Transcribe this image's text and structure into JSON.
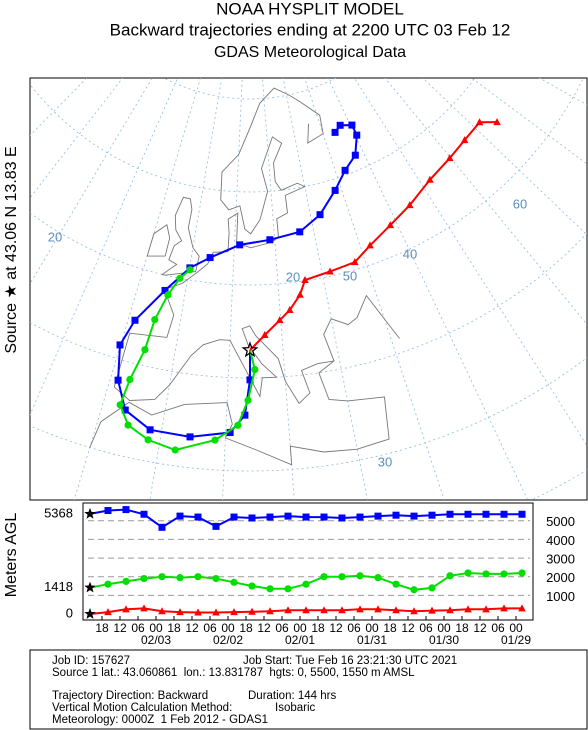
{
  "header": {
    "title": "NOAA HYSPLIT MODEL",
    "subtitle": "Backward trajectories ending at 2200 UTC 03 Feb 12",
    "source_data": "GDAS Meteorological Data"
  },
  "map": {
    "side_label": "Source ★ at 43.06 N 13.83 E",
    "grid_labels": [
      20,
      20,
      30,
      40,
      50,
      60
    ],
    "trajectories": [
      {
        "lat": [
          43.0,
          39.8,
          36.0,
          34.1,
          33.3,
          33.4,
          34.9,
          37.8,
          41.5,
          44.5,
          48.4,
          51.3,
          52.7,
          54.3,
          54.8,
          55.3,
          56.7,
          58.8,
          60.5,
          61.6,
          63.5,
          64.7,
          65.2,
          64.7
        ],
        "lon": [
          13.83,
          13.83,
          13.0,
          10.7,
          4.5,
          -1.8,
          -6.3,
          -8.7,
          -10.1,
          -8.7,
          -4.3,
          0.1,
          4.4,
          11.3,
          18.8,
          26.5,
          32.5,
          38.2,
          42.8,
          47.4,
          50.5,
          50.5,
          46.7,
          44.1
        ]
      },
      {
        "lat": [
          43.0,
          40.9,
          37.6,
          34.9,
          33.2,
          31.7,
          32.3,
          33.4,
          35.3,
          38.2,
          41.7,
          45.1,
          48.0,
          50.0,
          51.1
        ],
        "lon": [
          13.83,
          14.7,
          13.5,
          11.9,
          8.4,
          2.5,
          -1.8,
          -5.3,
          -7.3,
          -6.8,
          -5.5,
          -5.0,
          -3.5,
          -1.7,
          0.2
        ]
      },
      {
        "lat": [
          43.0,
          44.6,
          46.1,
          47.1,
          48.6,
          50.1,
          50.5,
          50.8,
          52.0,
          53.2,
          54.2,
          55.4,
          56.0,
          56.4,
          56.6,
          55.2
        ],
        "lon": [
          13.83,
          16.7,
          19.8,
          22.0,
          24.5,
          26.0,
          31.8,
          37.7,
          42.2,
          48.4,
          54.8,
          62.4,
          69.8,
          75.8,
          81.9,
          84.9
        ]
      }
    ]
  },
  "chart_data": {
    "type": "line",
    "y_label": "Meters AGL",
    "x": [
      0,
      6,
      12,
      18,
      24,
      30,
      36,
      42,
      48,
      54,
      60,
      66,
      72,
      78,
      84,
      90,
      96,
      102,
      108,
      114,
      120,
      126,
      132,
      138,
      144
    ],
    "xlim": [
      0,
      144
    ],
    "xticks": [
      {
        "value": 4,
        "label": "18"
      },
      {
        "value": 10,
        "label": "12"
      },
      {
        "value": 16,
        "label": "06"
      },
      {
        "value": 22,
        "label": "00"
      },
      {
        "value": 28,
        "label": "18"
      },
      {
        "value": 34,
        "label": "12"
      },
      {
        "value": 40,
        "label": "06"
      },
      {
        "value": 46,
        "label": "00"
      },
      {
        "value": 52,
        "label": "18"
      },
      {
        "value": 58,
        "label": "12"
      },
      {
        "value": 64,
        "label": "06"
      },
      {
        "value": 70,
        "label": "00"
      },
      {
        "value": 76,
        "label": "18"
      },
      {
        "value": 82,
        "label": "12"
      },
      {
        "value": 88,
        "label": "06"
      },
      {
        "value": 94,
        "label": "00"
      },
      {
        "value": 100,
        "label": "18"
      },
      {
        "value": 106,
        "label": "12"
      },
      {
        "value": 112,
        "label": "06"
      },
      {
        "value": 118,
        "label": "00"
      },
      {
        "value": 124,
        "label": "18"
      },
      {
        "value": 130,
        "label": "12"
      },
      {
        "value": 136,
        "label": "06"
      },
      {
        "value": 142,
        "label": "00"
      }
    ],
    "date_ticks": [
      {
        "value": 22,
        "label": "02/03"
      },
      {
        "value": 46,
        "label": "02/02"
      },
      {
        "value": 70,
        "label": "02/01"
      },
      {
        "value": 94,
        "label": "01/31"
      },
      {
        "value": 118,
        "label": "01/30"
      },
      {
        "value": 142,
        "label": "01/29"
      }
    ],
    "ylim": [
      0,
      5900
    ],
    "yticks": [
      1000,
      2000,
      3000,
      4000,
      5000
    ],
    "grid": true,
    "series": [
      {
        "color": "#0000ff",
        "marker": "square",
        "values": [
          5368,
          5550,
          5600,
          5350,
          4650,
          5250,
          5200,
          4700,
          5200,
          5150,
          5200,
          5250,
          5200,
          5200,
          5150,
          5200,
          5250,
          5300,
          5250,
          5300,
          5350,
          5350,
          5350,
          5350,
          5350
        ]
      },
      {
        "color": "#00e000",
        "marker": "circle",
        "values": [
          1418,
          1600,
          1750,
          1900,
          2000,
          1950,
          2000,
          1900,
          1700,
          1500,
          1350,
          1350,
          1600,
          2000,
          2000,
          2050,
          1950,
          1600,
          1300,
          1400,
          2050,
          2200,
          2150,
          2150,
          2200
        ]
      },
      {
        "color": "#ff0000",
        "marker": "triangle",
        "values": [
          0,
          100,
          250,
          300,
          150,
          100,
          80,
          80,
          100,
          120,
          150,
          200,
          200,
          200,
          200,
          250,
          250,
          200,
          150,
          180,
          200,
          250,
          250,
          300,
          300
        ]
      }
    ]
  },
  "footer": {
    "job_id": "Job ID: 157627",
    "job_start": "Job Start: Tue Feb 16 23:21:30 UTC 2021",
    "source": "Source 1 lat.: 43.060861  lon.: 13.831787  hgts: 0, 5500, 1550 m AMSL",
    "direction": "Trajectory Direction: Backward",
    "duration": "Duration: 144 hrs",
    "vertical_method": "Vertical Motion Calculation Method:",
    "vertical_value": "Isobaric",
    "meteorology": "Meteorology: 0000Z  1 Feb 2012 - GDAS1"
  }
}
